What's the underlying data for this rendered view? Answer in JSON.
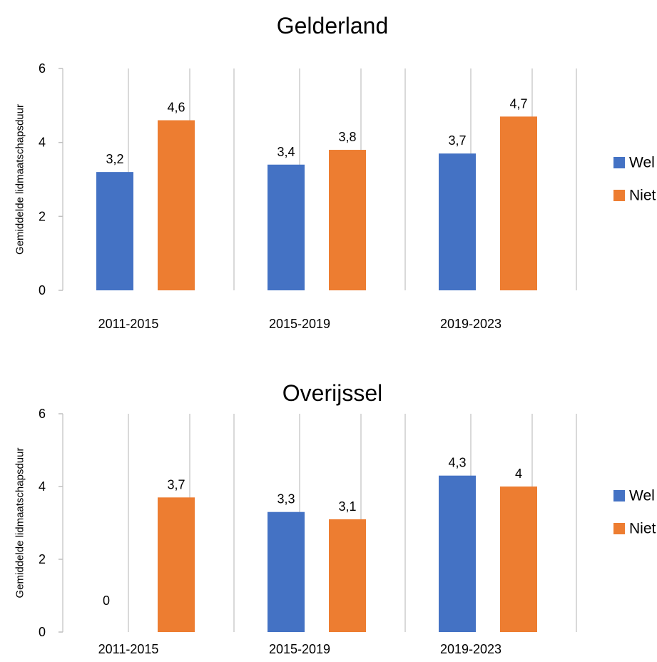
{
  "colors": {
    "wel": "#4472C4",
    "niet": "#ED7D31",
    "gridline": "#D9D9D9",
    "axis": "#BFBFBF"
  },
  "chart_data": [
    {
      "type": "bar",
      "title": "Gelderland",
      "ylabel": "Gemiddelde lidmaatschapsduur",
      "xlabel": "",
      "ylim": [
        0,
        6
      ],
      "yticks": [
        "0",
        "2",
        "4",
        "6"
      ],
      "categories": [
        "2011-2015",
        "2015-2019",
        "2019-2023"
      ],
      "series": [
        {
          "name": "Wel",
          "values": [
            3.2,
            3.4,
            3.7
          ],
          "labels": [
            "3,2",
            "3,4",
            "3,7"
          ]
        },
        {
          "name": "Niet",
          "values": [
            4.6,
            3.8,
            4.7
          ],
          "labels": [
            "4,6",
            "3,8",
            "4,7"
          ]
        }
      ],
      "legend": "right",
      "grid": "vertical"
    },
    {
      "type": "bar",
      "title": "Overijssel",
      "ylabel": "Gemiddelde lidmaatschapsduur",
      "xlabel": "",
      "ylim": [
        0,
        6
      ],
      "yticks": [
        "0",
        "2",
        "4",
        "6"
      ],
      "categories": [
        "2011-2015",
        "2015-2019",
        "2019-2023"
      ],
      "series": [
        {
          "name": "Wel",
          "values": [
            0,
            3.3,
            4.3
          ],
          "labels": [
            "0",
            "3,3",
            "4,3"
          ]
        },
        {
          "name": "Niet",
          "values": [
            3.7,
            3.1,
            4
          ],
          "labels": [
            "3,7",
            "3,1",
            "4"
          ]
        }
      ],
      "legend": "right",
      "grid": "vertical"
    }
  ]
}
